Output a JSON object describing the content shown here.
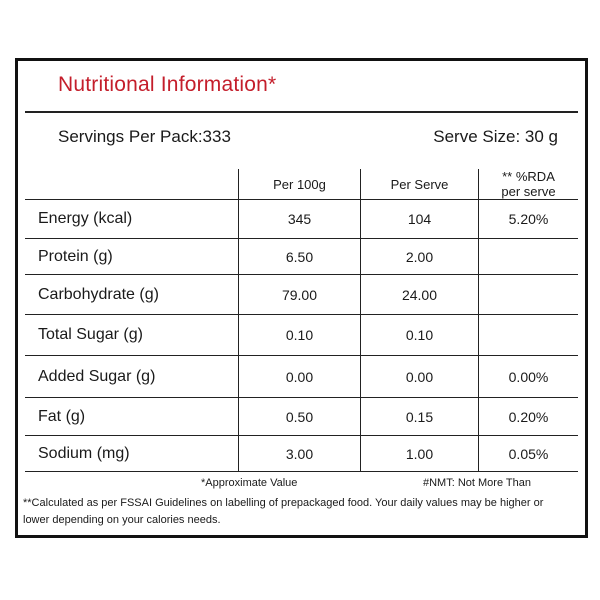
{
  "title": "Nutritional Information*",
  "servings_per_pack": "Servings Per Pack:333",
  "serve_size": "Serve Size: 30 g",
  "columns": [
    "",
    "Per 100g",
    "Per Serve",
    "** %RDA per serve"
  ],
  "rows": [
    {
      "name": "Energy (kcal)",
      "per100": "345",
      "perServe": "104",
      "rda": "5.20%"
    },
    {
      "name": "Protein (g)",
      "per100": "6.50",
      "perServe": "2.00",
      "rda": ""
    },
    {
      "name": "Carbohydrate (g)",
      "per100": "79.00",
      "perServe": "24.00",
      "rda": ""
    },
    {
      "name": "Total Sugar (g)",
      "per100": "0.10",
      "perServe": "0.10",
      "rda": ""
    },
    {
      "name": "Added Sugar (g)",
      "per100": "0.00",
      "perServe": "0.00",
      "rda": "0.00%"
    },
    {
      "name": "Fat (g)",
      "per100": "0.50",
      "perServe": "0.15",
      "rda": "0.20%"
    },
    {
      "name": "Sodium (mg)",
      "per100": "3.00",
      "perServe": "1.00",
      "rda": "0.05%"
    }
  ],
  "footnotes": {
    "approx": "*Approximate Value",
    "nmt": "#NMT: Not More Than",
    "fssai": "**Calculated as per FSSAI Guidelines on labelling of prepackaged food. Your daily values may be higher or lower depending on your calories needs."
  },
  "colors": {
    "title": "#c41e2b"
  }
}
